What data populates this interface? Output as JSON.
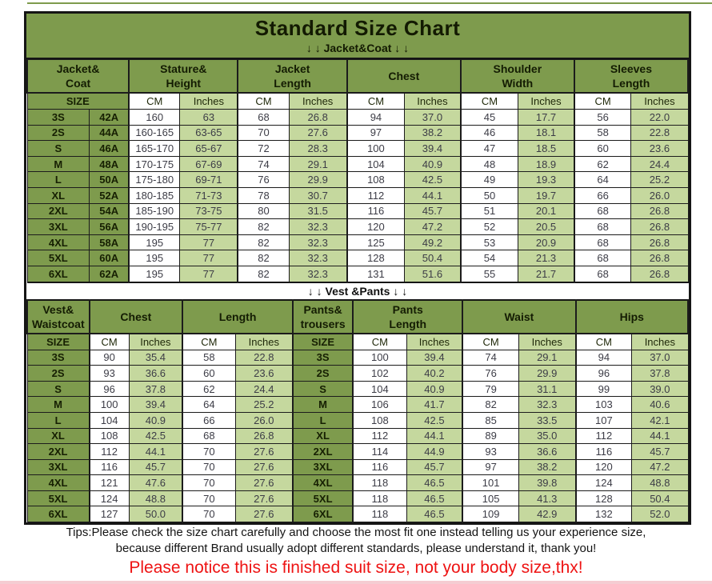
{
  "header": {
    "title": "Standard Size Chart"
  },
  "labels": {
    "size": "SIZE",
    "cm": "CM",
    "inches": "Inches"
  },
  "colors": {
    "dark_green": "#7e9b4d",
    "light_green": "#c5d89e",
    "notice_red": "#ee1313"
  },
  "chart_data": [
    {
      "type": "table",
      "name": "jacket-coat-size-table",
      "section_label": "↓ ↓  Jacket&Coat ↓ ↓",
      "group_headers": [
        "Jacket&\nCoat",
        "Stature&\nHeight",
        "Jacket\nLength",
        "Chest",
        "Shoulder\nWidth",
        "Sleeves\nLength"
      ],
      "sub_headers": [
        "SIZE",
        "CM",
        "Inches",
        "CM",
        "Inches",
        "CM",
        "Inches",
        "CM",
        "Inches",
        "CM",
        "Inches"
      ],
      "rows": [
        [
          "3S",
          "42A",
          "160",
          "63",
          "68",
          "26.8",
          "94",
          "37.0",
          "45",
          "17.7",
          "56",
          "22.0"
        ],
        [
          "2S",
          "44A",
          "160-165",
          "63-65",
          "70",
          "27.6",
          "97",
          "38.2",
          "46",
          "18.1",
          "58",
          "22.8"
        ],
        [
          "S",
          "46A",
          "165-170",
          "65-67",
          "72",
          "28.3",
          "100",
          "39.4",
          "47",
          "18.5",
          "60",
          "23.6"
        ],
        [
          "M",
          "48A",
          "170-175",
          "67-69",
          "74",
          "29.1",
          "104",
          "40.9",
          "48",
          "18.9",
          "62",
          "24.4"
        ],
        [
          "L",
          "50A",
          "175-180",
          "69-71",
          "76",
          "29.9",
          "108",
          "42.5",
          "49",
          "19.3",
          "64",
          "25.2"
        ],
        [
          "XL",
          "52A",
          "180-185",
          "71-73",
          "78",
          "30.7",
          "112",
          "44.1",
          "50",
          "19.7",
          "66",
          "26.0"
        ],
        [
          "2XL",
          "54A",
          "185-190",
          "73-75",
          "80",
          "31.5",
          "116",
          "45.7",
          "51",
          "20.1",
          "68",
          "26.8"
        ],
        [
          "3XL",
          "56A",
          "190-195",
          "75-77",
          "82",
          "32.3",
          "120",
          "47.2",
          "52",
          "20.5",
          "68",
          "26.8"
        ],
        [
          "4XL",
          "58A",
          "195",
          "77",
          "82",
          "32.3",
          "125",
          "49.2",
          "53",
          "20.9",
          "68",
          "26.8"
        ],
        [
          "5XL",
          "60A",
          "195",
          "77",
          "82",
          "32.3",
          "128",
          "50.4",
          "54",
          "21.3",
          "68",
          "26.8"
        ],
        [
          "6XL",
          "62A",
          "195",
          "77",
          "82",
          "32.3",
          "131",
          "51.6",
          "55",
          "21.7",
          "68",
          "26.8"
        ]
      ]
    },
    {
      "type": "table",
      "name": "vest-pants-size-table",
      "section_label": "↓ ↓  Vest &Pants ↓ ↓",
      "group_headers": [
        "Vest&\nWaistcoat",
        "Chest",
        "Length",
        "Pants&\ntrousers",
        "Pants\nLength",
        "Waist",
        "Hips"
      ],
      "sub_headers": [
        "SIZE",
        "CM",
        "Inches",
        "CM",
        "Inches",
        "SIZE",
        "CM",
        "Inches",
        "CM",
        "Inches",
        "CM",
        "Inches"
      ],
      "rows": [
        [
          "3S",
          "90",
          "35.4",
          "58",
          "22.8",
          "3S",
          "100",
          "39.4",
          "74",
          "29.1",
          "94",
          "37.0"
        ],
        [
          "2S",
          "93",
          "36.6",
          "60",
          "23.6",
          "2S",
          "102",
          "40.2",
          "76",
          "29.9",
          "96",
          "37.8"
        ],
        [
          "S",
          "96",
          "37.8",
          "62",
          "24.4",
          "S",
          "104",
          "40.9",
          "79",
          "31.1",
          "99",
          "39.0"
        ],
        [
          "M",
          "100",
          "39.4",
          "64",
          "25.2",
          "M",
          "106",
          "41.7",
          "82",
          "32.3",
          "103",
          "40.6"
        ],
        [
          "L",
          "104",
          "40.9",
          "66",
          "26.0",
          "L",
          "108",
          "42.5",
          "85",
          "33.5",
          "107",
          "42.1"
        ],
        [
          "XL",
          "108",
          "42.5",
          "68",
          "26.8",
          "XL",
          "112",
          "44.1",
          "89",
          "35.0",
          "112",
          "44.1"
        ],
        [
          "2XL",
          "112",
          "44.1",
          "70",
          "27.6",
          "2XL",
          "114",
          "44.9",
          "93",
          "36.6",
          "116",
          "45.7"
        ],
        [
          "3XL",
          "116",
          "45.7",
          "70",
          "27.6",
          "3XL",
          "116",
          "45.7",
          "97",
          "38.2",
          "120",
          "47.2"
        ],
        [
          "4XL",
          "121",
          "47.6",
          "70",
          "27.6",
          "4XL",
          "118",
          "46.5",
          "101",
          "39.8",
          "124",
          "48.8"
        ],
        [
          "5XL",
          "124",
          "48.8",
          "70",
          "27.6",
          "5XL",
          "118",
          "46.5",
          "105",
          "41.3",
          "128",
          "50.4"
        ],
        [
          "6XL",
          "127",
          "50.0",
          "70",
          "27.6",
          "6XL",
          "118",
          "46.5",
          "109",
          "42.9",
          "132",
          "52.0"
        ]
      ]
    }
  ],
  "footer": {
    "tips_line1": "Tips:Please check the size chart carefully and choose the most fit one instead telling us your experience size,",
    "tips_line2": "because different Brand usually adopt different standards, please understand it, thank you!",
    "notice": "Please notice this is finished suit size, not your body size,thx!"
  }
}
